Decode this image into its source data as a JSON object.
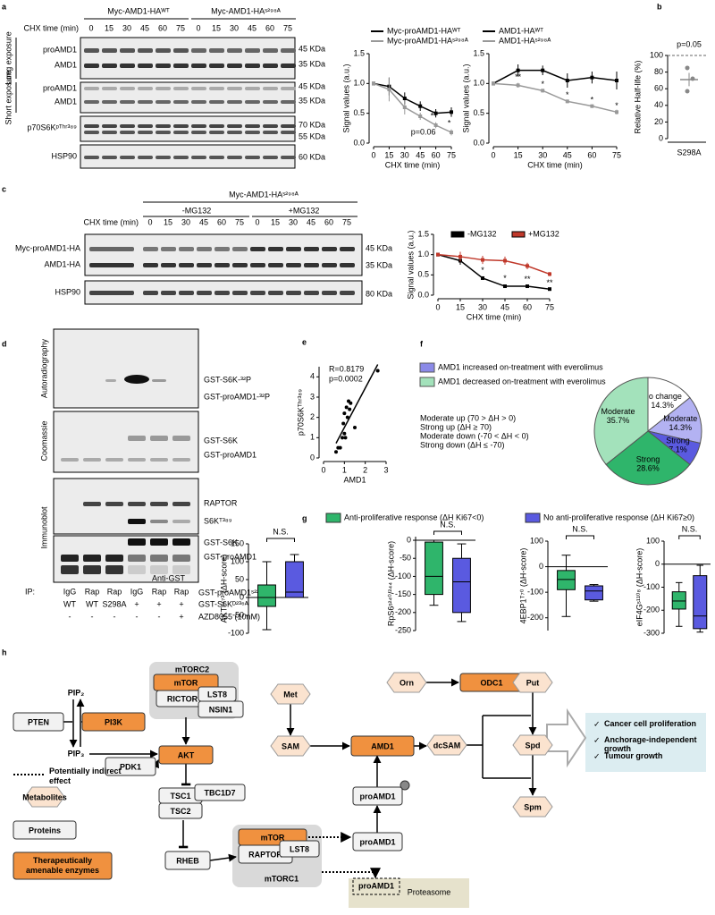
{
  "panel_labels": [
    "a",
    "b",
    "c",
    "d",
    "e",
    "f",
    "g",
    "h"
  ],
  "blot_a": {
    "title_wt": "Myc-AMD1-HAᵂᵀ",
    "title_mut": "Myc-AMD1-HAˢ²⁹⁸ᴬ",
    "chx_label": "CHX time (min)",
    "times": [
      "0",
      "15",
      "30",
      "45",
      "60",
      "75",
      "0",
      "15",
      "30",
      "45",
      "60",
      "75"
    ],
    "groups": [
      "Long exposure",
      "Short exposure"
    ],
    "rows": [
      "proAMD1",
      "AMD1",
      "proAMD1",
      "AMD1",
      "p70S6Kᵖᵀʰʳ³⁸⁹",
      "HSP90"
    ],
    "mw": [
      "45 KDa",
      "35 KDa",
      "45 KDa",
      "35 KDa",
      "70 KDa",
      "55 KDa",
      "60 KDa"
    ]
  },
  "blot_c": {
    "title": "Myc-AMD1-HAˢ²⁹⁸ᴬ",
    "conditions": [
      "-MG132",
      "+MG132"
    ],
    "chx_label": "CHX time (min)",
    "times": [
      "0",
      "15",
      "30",
      "45",
      "60",
      "75",
      "0",
      "15",
      "30",
      "45",
      "60",
      "75"
    ],
    "rows": [
      "Myc-proAMD1-HA",
      "AMD1-HA",
      "HSP90"
    ],
    "mw": [
      "45 KDa",
      "35 KDa",
      "80 KDa"
    ]
  },
  "blot_d": {
    "sections": [
      "Autoradiography",
      "Coomassie",
      "Immunoblot"
    ],
    "bands": [
      "GST-S6K-³²P",
      "GST-proAMD1-³²P",
      "GST-S6K",
      "GST-proAMD1",
      "RAPTOR",
      "S6Kᵀ³⁸⁹",
      "GST-S6K",
      "GST-proAMD1"
    ],
    "antibody": "Anti-GST",
    "ip_label": "IP:",
    "ip": [
      "IgG",
      "Rap",
      "Rap",
      "IgG",
      "Rap",
      "Rap"
    ],
    "genotype": [
      "WT",
      "WT",
      "S298A"
    ],
    "conditions": [
      "GST-proAMD1ˢ²²⁹ᴬ",
      "GST-S6Kᴰ²³⁶ᴬ",
      "AZD8055 (10nM)"
    ],
    "s6k_signs": [
      "+",
      "+",
      "+"
    ],
    "azd_signs": [
      "-",
      "-",
      "-",
      "-",
      "-",
      "+"
    ]
  },
  "f_legend": {
    "increased": "AMD1 increased on-treatment with everolimus",
    "decreased": "AMD1 decreased on-treatment with everolimus",
    "definitions": [
      "Moderate up (70 > ΔH > 0)",
      "Strong up (ΔH ≥ 70)",
      "Moderate down (-70 < ΔH < 0)",
      "Strong down (ΔH ≤ -70)"
    ]
  },
  "g_legend": {
    "names": [
      "Anti-proliferative response (ΔH Ki67<0)",
      "No anti-proliferative response (ΔH Ki67≥0)"
    ],
    "colors": [
      "#2fb56b",
      "#5a5ae0"
    ]
  },
  "chart_data": [
    {
      "type": "line",
      "xlabel": "CHX time (min)",
      "ylabel": "Signal values (a.u.)",
      "x": [
        0,
        15,
        30,
        45,
        60,
        75
      ],
      "xlim": [
        0,
        75
      ],
      "xticks": [
        0,
        15,
        30,
        45,
        60,
        75
      ],
      "ylim": [
        0,
        1.5
      ],
      "yticks": [
        {
          "value": 0,
          "label": "0.0"
        },
        {
          "value": 0.5,
          "label": "0.5"
        },
        {
          "value": 1,
          "label": "1.0"
        },
        {
          "value": 1.5,
          "label": "1.5"
        }
      ],
      "series": [
        {
          "name": "Myc-proAMD1-HAᵂᵀ",
          "color": "#000000",
          "values": [
            1,
            0.95,
            0.75,
            0.62,
            0.5,
            0.52
          ],
          "errors": [
            0,
            0.15,
            0.1,
            0.08,
            0.07,
            0.08
          ]
        },
        {
          "name": "Myc-proAMD1-HAˢ²⁹⁸ᴬ",
          "color": "#999999",
          "values": [
            1,
            0.9,
            0.6,
            0.45,
            0.3,
            0.18
          ],
          "errors": [
            0,
            0.2,
            0.12,
            0.06,
            0.05,
            0.05
          ]
        }
      ],
      "annotations": [
        "p=0.06",
        "**",
        "*"
      ]
    },
    {
      "type": "line",
      "xlabel": "CHX time (min)",
      "ylabel": "Signal values (a.u.)",
      "x": [
        0,
        15,
        30,
        45,
        60,
        75
      ],
      "xlim": [
        0,
        75
      ],
      "xticks": [
        0,
        15,
        30,
        45,
        60,
        75
      ],
      "ylim": [
        0,
        1.5
      ],
      "yticks": [
        {
          "value": 0,
          "label": "0.0"
        },
        {
          "value": 0.5,
          "label": "0.5"
        },
        {
          "value": 1,
          "label": "1.0"
        },
        {
          "value": 1.5,
          "label": "1.5"
        }
      ],
      "series": [
        {
          "name": "AMD1-HAᵂᵀ",
          "color": "#000000",
          "values": [
            1,
            1.22,
            1.22,
            1.05,
            1.1,
            1.05
          ],
          "errors": [
            0,
            0.1,
            0.08,
            0.12,
            0.1,
            0.15
          ]
        },
        {
          "name": "AMD1-HAˢ²⁹⁸ᴬ",
          "color": "#999999",
          "values": [
            1,
            0.97,
            0.88,
            0.7,
            0.62,
            0.52
          ],
          "errors": [
            0,
            0.04,
            0.03,
            0.03,
            0.03,
            0.04
          ]
        }
      ],
      "annotations": [
        "**",
        "*",
        "*",
        "*",
        "*"
      ]
    },
    {
      "type": "dot",
      "ylabel": "Relative Half-life (%)",
      "categories": [
        "S298A"
      ],
      "points": [
        85,
        72,
        57
      ],
      "mean": 71,
      "error": 8,
      "reference": 100,
      "color": "#888888",
      "ylim": [
        0,
        100
      ],
      "yticks": [
        0,
        20,
        40,
        60,
        80,
        100
      ],
      "annotations": [
        "p=0.05"
      ]
    },
    {
      "type": "line",
      "xlabel": "CHX time (min)",
      "ylabel": "Signal values (a.u.)",
      "x": [
        0,
        15,
        30,
        45,
        60,
        75
      ],
      "xlim": [
        0,
        75
      ],
      "xticks": [
        0,
        15,
        30,
        45,
        60,
        75
      ],
      "ylim": [
        0,
        1.5
      ],
      "yticks": [
        {
          "value": 0,
          "label": "0.0"
        },
        {
          "value": 0.5,
          "label": "0.5"
        },
        {
          "value": 1,
          "label": "1.0"
        },
        {
          "value": 1.5,
          "label": "1.5"
        }
      ],
      "series": [
        {
          "name": "-MG132",
          "color": "#000000",
          "values": [
            1,
            0.85,
            0.42,
            0.22,
            0.22,
            0.15
          ],
          "errors": [
            0,
            0.1,
            0.04,
            0.03,
            0.03,
            0.02
          ]
        },
        {
          "name": "+MG132",
          "color": "#c0392b",
          "values": [
            1,
            0.95,
            0.87,
            0.85,
            0.72,
            0.52
          ],
          "errors": [
            0,
            0.12,
            0.1,
            0.1,
            0.08,
            0.05
          ]
        }
      ],
      "annotations": [
        "*",
        "*",
        "**",
        "**"
      ]
    },
    {
      "type": "scatter",
      "xlabel": "AMD1",
      "ylabel": "p70S6Kᵀʰʳ³⁸⁹",
      "x": [
        0.6,
        0.7,
        0.8,
        0.9,
        0.95,
        1.0,
        1.0,
        1.05,
        1.1,
        1.15,
        1.2,
        1.25,
        1.3,
        1.5,
        2.6
      ],
      "values": [
        0.3,
        0.5,
        0.5,
        1.0,
        1.7,
        1.2,
        2.2,
        1.0,
        2.5,
        2.0,
        2.8,
        2.4,
        2.7,
        1.5,
        4.3
      ],
      "xlim": [
        0,
        3
      ],
      "xticks": [
        0,
        1,
        2,
        3
      ],
      "ylim": [
        0,
        4.5
      ],
      "yticks": [
        0,
        1,
        2,
        3,
        4
      ],
      "color": "#000000",
      "annotations": [
        "R=0.8179",
        "p=0.0002"
      ]
    },
    {
      "type": "pie",
      "categories": [
        "No change",
        "Moderate",
        "Strong",
        "Strong",
        "Moderate"
      ],
      "values": [
        14.3,
        14.3,
        7.1,
        28.6,
        35.7
      ],
      "value_labels": [
        "14.3%",
        "14.3%",
        "7.1%",
        "28.6%",
        "35.7%"
      ],
      "colors": [
        "#ffffff",
        "#b3b2f2",
        "#5a5ae0",
        "#2fb56b",
        "#a3e2bb"
      ]
    },
    {
      "type": "box",
      "ylabel": "AKTˢ⁴⁷³ (ΔH-score)",
      "ylim": [
        -100,
        150
      ],
      "yticks": [
        -100,
        -50,
        0,
        50,
        100,
        150
      ],
      "boxes": [
        {
          "min": -90,
          "q1": -25,
          "median": 0,
          "q3": 35,
          "max": 100
        },
        {
          "min": 0,
          "q1": 0,
          "median": 15,
          "q3": 100,
          "max": 120
        }
      ],
      "colors": [
        "#2fb56b",
        "#5a5ae0"
      ],
      "annotations": [
        "N.S."
      ]
    },
    {
      "type": "box",
      "ylabel": "RpS6ˢ²⁴⁰/²⁴⁴ (ΔH-score)",
      "ylim": [
        -250,
        10
      ],
      "yticks": [
        -250,
        -200,
        -150,
        -100,
        -50,
        0
      ],
      "boxes": [
        {
          "min": -180,
          "q1": -150,
          "median": -100,
          "q3": -5,
          "max": 0
        },
        {
          "min": -225,
          "q1": -200,
          "median": -115,
          "q3": -50,
          "max": -10
        }
      ],
      "colors": [
        "#2fb56b",
        "#5a5ae0"
      ],
      "annotations": [
        "N.S."
      ]
    },
    {
      "type": "box",
      "ylabel": "4EBP1ᵀ⁷⁰ (ΔH-score)",
      "ylim": [
        -250,
        100
      ],
      "yticks": [
        -200,
        -100,
        0,
        100
      ],
      "boxes": [
        {
          "min": -195,
          "q1": -90,
          "median": -50,
          "q3": -15,
          "max": 45
        },
        {
          "min": -135,
          "q1": -130,
          "median": -95,
          "q3": -75,
          "max": -70
        }
      ],
      "colors": [
        "#2fb56b",
        "#5a5ae0"
      ],
      "annotations": [
        "N.S."
      ]
    },
    {
      "type": "box",
      "ylabel": "eIF4Gˢ¹¹⁰⁸ (ΔH-score)",
      "ylim": [
        -300,
        100
      ],
      "yticks": [
        -300,
        -200,
        -100,
        0,
        100
      ],
      "boxes": [
        {
          "min": -270,
          "q1": -195,
          "median": -160,
          "q3": -120,
          "max": -80
        },
        {
          "min": -295,
          "q1": -280,
          "median": -225,
          "q3": -50,
          "max": -5
        }
      ],
      "colors": [
        "#2fb56b",
        "#5a5ae0"
      ],
      "annotations": [
        "N.S."
      ]
    }
  ],
  "pathway": {
    "nodes": [
      "mTORC2",
      "mTOR",
      "RICTOR",
      "LST8",
      "NSIN1",
      "PIP₂",
      "PIP₃",
      "PTEN",
      "PI3K",
      "PDK1",
      "AKT",
      "TSC1",
      "TBC1D7",
      "TSC2",
      "RHEB",
      "mTOR",
      "RAPTOR",
      "LST8",
      "mTORC1",
      "Met",
      "SAM",
      "Orn",
      "ODC1",
      "Put",
      "AMD1",
      "dcSAM",
      "Spd",
      "Spm",
      "proAMD1",
      "proAMD1",
      "proAMD1",
      "Proteasome"
    ],
    "outcomes": [
      "Cancer cell proliferation",
      "Anchorage-independent growth",
      "Tumour growth"
    ],
    "legend": [
      "Potentially indirect effect",
      "Metabolites",
      "Proteins",
      "Therapeutically amenable enzymes"
    ]
  }
}
